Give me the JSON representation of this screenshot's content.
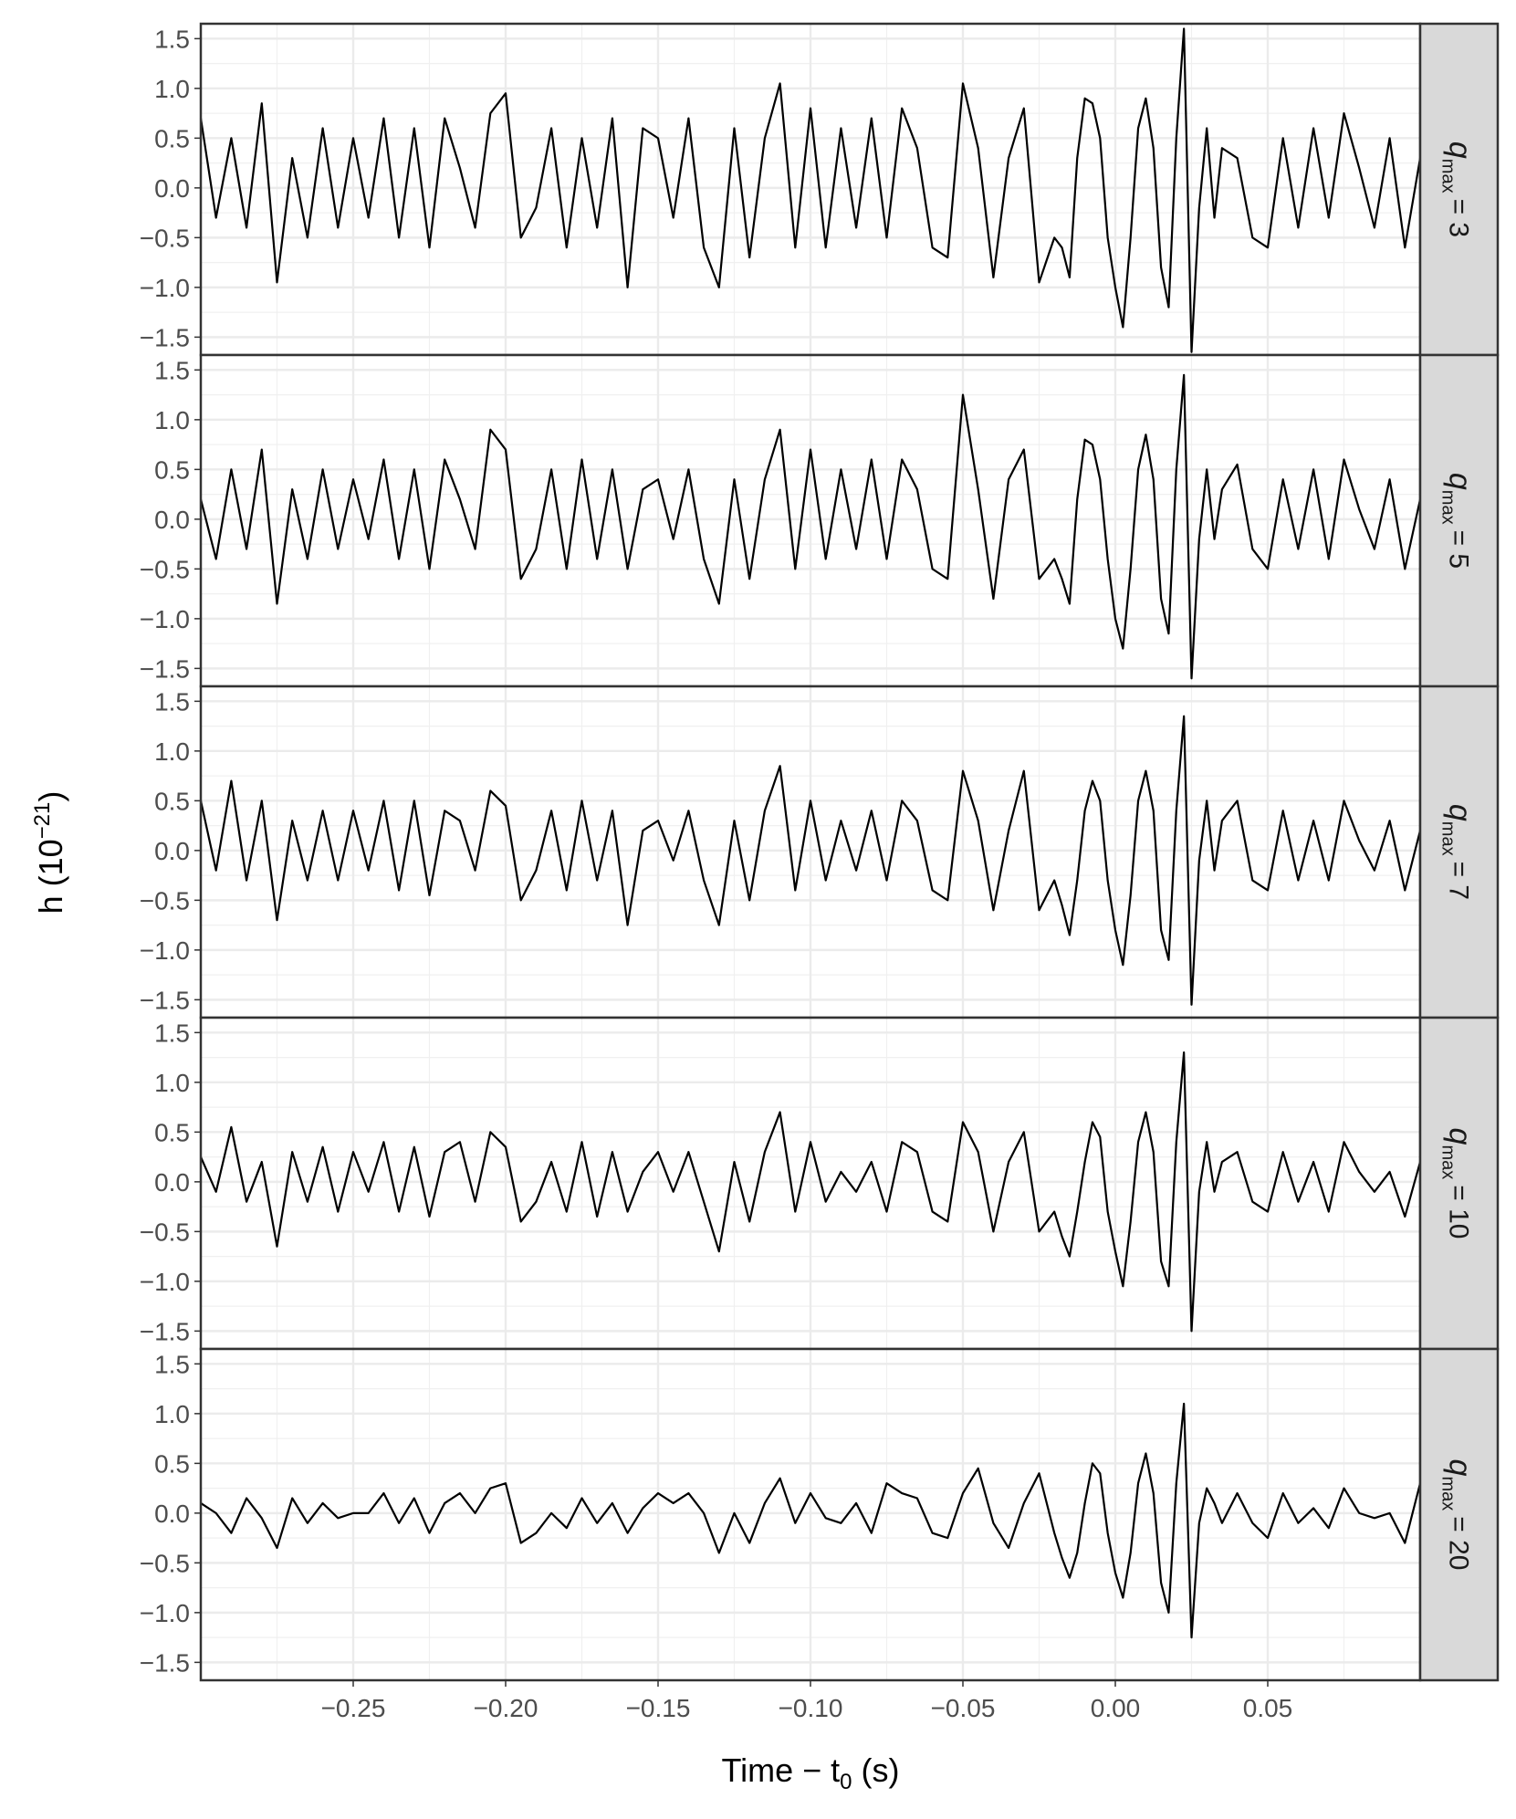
{
  "chart_data": {
    "type": "line",
    "x_label": {
      "text": "Time − t",
      "subscript": "0",
      "suffix": "(s)"
    },
    "y_label": {
      "text": "h (10",
      "superscript": "−21",
      "suffix": ")"
    },
    "strip_symbol": "q",
    "strip_subscript": "max",
    "x": [
      -0.3,
      -0.295,
      -0.29,
      -0.285,
      -0.28,
      -0.275,
      -0.27,
      -0.265,
      -0.26,
      -0.255,
      -0.25,
      -0.245,
      -0.24,
      -0.235,
      -0.23,
      -0.225,
      -0.22,
      -0.215,
      -0.21,
      -0.205,
      -0.2,
      -0.195,
      -0.19,
      -0.185,
      -0.18,
      -0.175,
      -0.17,
      -0.165,
      -0.16,
      -0.155,
      -0.15,
      -0.145,
      -0.14,
      -0.135,
      -0.13,
      -0.125,
      -0.12,
      -0.115,
      -0.11,
      -0.105,
      -0.1,
      -0.095,
      -0.09,
      -0.085,
      -0.08,
      -0.075,
      -0.07,
      -0.065,
      -0.06,
      -0.055,
      -0.05,
      -0.045,
      -0.04,
      -0.035,
      -0.03,
      -0.025,
      -0.02,
      -0.0175,
      -0.015,
      -0.0125,
      -0.01,
      -0.0075,
      -0.005,
      -0.0025,
      0,
      0.0025,
      0.005,
      0.0075,
      0.01,
      0.0125,
      0.015,
      0.0175,
      0.02,
      0.0225,
      0.025,
      0.0275,
      0.03,
      0.0325,
      0.035,
      0.04,
      0.045,
      0.05,
      0.055,
      0.06,
      0.065,
      0.07,
      0.075,
      0.08,
      0.085,
      0.09,
      0.095,
      0.1
    ],
    "xlim": [
      -0.3,
      0.1
    ],
    "xticks": [
      {
        "value": -0.25,
        "label": "−0.25"
      },
      {
        "value": -0.2,
        "label": "−0.20"
      },
      {
        "value": -0.15,
        "label": "−0.15"
      },
      {
        "value": -0.1,
        "label": "−0.10"
      },
      {
        "value": -0.05,
        "label": "−0.05"
      },
      {
        "value": 0,
        "label": "0.00"
      },
      0.05
    ],
    "ylim": [
      -1.68,
      1.65
    ],
    "yticks": [
      {
        "value": -1.5,
        "label": "−1.5"
      },
      {
        "value": -1,
        "label": "−1.0"
      },
      {
        "value": -0.5,
        "label": "−0.5"
      },
      {
        "value": 0,
        "label": "0.0"
      },
      0.5,
      {
        "value": 1,
        "label": "1.0"
      },
      1.5
    ],
    "grid": true,
    "minor_grid": true,
    "series": [
      {
        "name": "= 3",
        "color": "#000000",
        "values": [
          0.7,
          -0.3,
          0.5,
          -0.4,
          0.85,
          -0.95,
          0.3,
          -0.5,
          0.6,
          -0.4,
          0.5,
          -0.3,
          0.7,
          -0.5,
          0.6,
          -0.6,
          0.7,
          0.2,
          -0.4,
          0.75,
          0.95,
          -0.5,
          -0.2,
          0.6,
          -0.6,
          0.5,
          -0.4,
          0.7,
          -1.0,
          0.6,
          0.5,
          -0.3,
          0.7,
          -0.6,
          -1.0,
          0.6,
          -0.7,
          0.5,
          1.05,
          -0.6,
          0.8,
          -0.6,
          0.6,
          -0.4,
          0.7,
          -0.5,
          0.8,
          0.4,
          -0.6,
          -0.7,
          1.05,
          0.4,
          -0.9,
          0.3,
          0.8,
          -0.95,
          -0.5,
          -0.6,
          -0.9,
          0.3,
          0.9,
          0.85,
          0.5,
          -0.5,
          -1.0,
          -1.4,
          -0.5,
          0.6,
          0.9,
          0.4,
          -0.8,
          -1.2,
          0.5,
          1.6,
          -1.65,
          -0.2,
          0.6,
          -0.3,
          0.4,
          0.3,
          -0.5,
          -0.6,
          0.5,
          -0.4,
          0.6,
          -0.3,
          0.75,
          0.2,
          -0.4,
          0.5,
          -0.6,
          0.3
        ]
      },
      {
        "name": "= 5",
        "color": "#000000",
        "values": [
          0.2,
          -0.4,
          0.5,
          -0.3,
          0.7,
          -0.85,
          0.3,
          -0.4,
          0.5,
          -0.3,
          0.4,
          -0.2,
          0.6,
          -0.4,
          0.5,
          -0.5,
          0.6,
          0.2,
          -0.3,
          0.9,
          0.7,
          -0.6,
          -0.3,
          0.5,
          -0.5,
          0.6,
          -0.4,
          0.5,
          -0.5,
          0.3,
          0.4,
          -0.2,
          0.5,
          -0.4,
          -0.85,
          0.4,
          -0.6,
          0.4,
          0.9,
          -0.5,
          0.7,
          -0.4,
          0.5,
          -0.3,
          0.6,
          -0.4,
          0.6,
          0.3,
          -0.5,
          -0.6,
          1.25,
          0.3,
          -0.8,
          0.4,
          0.7,
          -0.6,
          -0.4,
          -0.6,
          -0.85,
          0.2,
          0.8,
          0.75,
          0.4,
          -0.4,
          -1.0,
          -1.3,
          -0.5,
          0.5,
          0.85,
          0.4,
          -0.8,
          -1.15,
          0.5,
          1.45,
          -1.6,
          -0.2,
          0.5,
          -0.2,
          0.3,
          0.55,
          -0.3,
          -0.5,
          0.4,
          -0.3,
          0.5,
          -0.4,
          0.6,
          0.1,
          -0.3,
          0.4,
          -0.5,
          0.2
        ]
      },
      {
        "name": "= 7",
        "color": "#000000",
        "values": [
          0.5,
          -0.2,
          0.7,
          -0.3,
          0.5,
          -0.7,
          0.3,
          -0.3,
          0.4,
          -0.3,
          0.4,
          -0.2,
          0.5,
          -0.4,
          0.5,
          -0.45,
          0.4,
          0.3,
          -0.2,
          0.6,
          0.45,
          -0.5,
          -0.2,
          0.4,
          -0.4,
          0.5,
          -0.3,
          0.4,
          -0.75,
          0.2,
          0.3,
          -0.1,
          0.4,
          -0.3,
          -0.75,
          0.3,
          -0.5,
          0.4,
          0.85,
          -0.4,
          0.5,
          -0.3,
          0.3,
          -0.2,
          0.4,
          -0.3,
          0.5,
          0.3,
          -0.4,
          -0.5,
          0.8,
          0.3,
          -0.6,
          0.2,
          0.8,
          -0.6,
          -0.3,
          -0.55,
          -0.85,
          -0.3,
          0.4,
          0.7,
          0.5,
          -0.3,
          -0.8,
          -1.15,
          -0.45,
          0.5,
          0.8,
          0.4,
          -0.8,
          -1.1,
          0.4,
          1.35,
          -1.55,
          -0.1,
          0.5,
          -0.2,
          0.3,
          0.5,
          -0.3,
          -0.4,
          0.4,
          -0.3,
          0.3,
          -0.3,
          0.5,
          0.1,
          -0.2,
          0.3,
          -0.4,
          0.2
        ]
      },
      {
        "name": "= 10",
        "color": "#000000",
        "values": [
          0.25,
          -0.1,
          0.55,
          -0.2,
          0.2,
          -0.65,
          0.3,
          -0.2,
          0.35,
          -0.3,
          0.3,
          -0.1,
          0.4,
          -0.3,
          0.35,
          -0.35,
          0.3,
          0.4,
          -0.2,
          0.5,
          0.35,
          -0.4,
          -0.2,
          0.2,
          -0.3,
          0.4,
          -0.35,
          0.3,
          -0.3,
          0.1,
          0.3,
          -0.1,
          0.3,
          -0.2,
          -0.7,
          0.2,
          -0.4,
          0.3,
          0.7,
          -0.3,
          0.4,
          -0.2,
          0.1,
          -0.1,
          0.2,
          -0.3,
          0.4,
          0.3,
          -0.3,
          -0.4,
          0.6,
          0.3,
          -0.5,
          0.2,
          0.5,
          -0.5,
          -0.3,
          -0.55,
          -0.75,
          -0.3,
          0.2,
          0.6,
          0.45,
          -0.3,
          -0.7,
          -1.05,
          -0.4,
          0.4,
          0.7,
          0.3,
          -0.8,
          -1.05,
          0.4,
          1.3,
          -1.5,
          -0.1,
          0.4,
          -0.1,
          0.2,
          0.3,
          -0.2,
          -0.3,
          0.3,
          -0.2,
          0.2,
          -0.3,
          0.4,
          0.1,
          -0.1,
          0.1,
          -0.35,
          0.2
        ]
      },
      {
        "name": "= 20",
        "color": "#000000",
        "values": [
          0.1,
          0.0,
          -0.2,
          0.15,
          -0.05,
          -0.35,
          0.15,
          -0.1,
          0.1,
          -0.05,
          0.0,
          0.0,
          0.2,
          -0.1,
          0.15,
          -0.2,
          0.1,
          0.2,
          0.0,
          0.25,
          0.3,
          -0.3,
          -0.2,
          0.0,
          -0.15,
          0.15,
          -0.1,
          0.1,
          -0.2,
          0.05,
          0.2,
          0.1,
          0.2,
          0.0,
          -0.4,
          0.0,
          -0.3,
          0.1,
          0.35,
          -0.1,
          0.2,
          -0.05,
          -0.1,
          0.1,
          -0.2,
          0.3,
          0.2,
          0.15,
          -0.2,
          -0.25,
          0.2,
          0.45,
          -0.1,
          -0.35,
          0.1,
          0.4,
          -0.2,
          -0.45,
          -0.65,
          -0.4,
          0.1,
          0.5,
          0.4,
          -0.2,
          -0.6,
          -0.85,
          -0.4,
          0.3,
          0.6,
          0.2,
          -0.7,
          -1.0,
          0.3,
          1.1,
          -1.25,
          -0.1,
          0.25,
          0.1,
          -0.1,
          0.2,
          -0.1,
          -0.25,
          0.2,
          -0.1,
          0.05,
          -0.15,
          0.25,
          0.0,
          -0.05,
          0.0,
          -0.3,
          0.3
        ]
      }
    ]
  }
}
